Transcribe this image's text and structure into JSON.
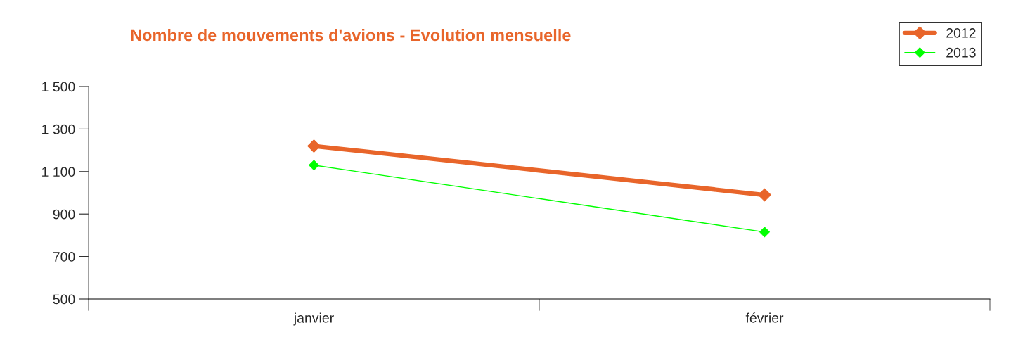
{
  "chart_data": {
    "type": "line",
    "title": "Nombre de mouvements d'avions - Evolution mensuelle",
    "categories": [
      "janvier",
      "février"
    ],
    "series": [
      {
        "name": "2012",
        "color": "#e8652a",
        "values": [
          1220,
          990
        ]
      },
      {
        "name": "2013",
        "color": "#00ff00",
        "values": [
          1130,
          815
        ]
      }
    ],
    "ylim": [
      500,
      1500
    ],
    "yticks": [
      {
        "value": 500,
        "label": "500"
      },
      {
        "value": 700,
        "label": "700"
      },
      {
        "value": 900,
        "label": "900"
      },
      {
        "value": 1100,
        "label": "1 100"
      },
      {
        "value": 1300,
        "label": "1 300"
      },
      {
        "value": 1500,
        "label": "1 500"
      }
    ],
    "grid": false,
    "legend": "top right",
    "marker": "diamond",
    "line_style": "solid"
  }
}
